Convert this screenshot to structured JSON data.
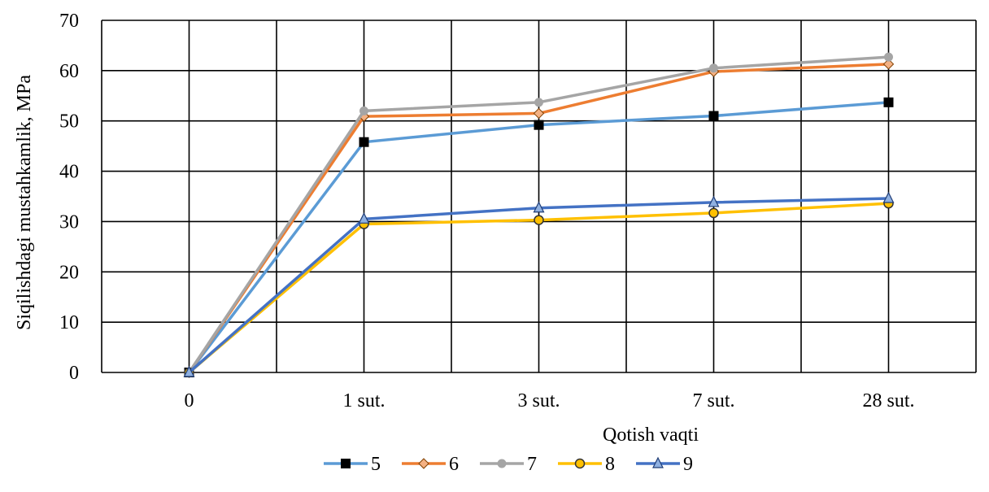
{
  "chart_data": {
    "type": "line",
    "title": "",
    "xlabel": "Qotish vaqti",
    "ylabel": "Siqilishdagi mustahkamlik, MPa",
    "categories": [
      "0",
      "1 sut.",
      "3 sut.",
      "7 sut.",
      "28 sut."
    ],
    "ylim": [
      0,
      70
    ],
    "yticks": [
      0,
      10,
      20,
      30,
      40,
      50,
      60,
      70
    ],
    "grid": true,
    "legend_position": "bottom",
    "series": [
      {
        "name": "5",
        "values": [
          0,
          45.8,
          49.2,
          51.0,
          53.7
        ],
        "color": "#5b9bd5",
        "marker": "square"
      },
      {
        "name": "6",
        "values": [
          0,
          50.9,
          51.5,
          59.8,
          61.3
        ],
        "color": "#ed7d31",
        "marker": "diamond"
      },
      {
        "name": "7",
        "values": [
          0,
          52.0,
          53.7,
          60.5,
          62.7
        ],
        "color": "#a5a5a5",
        "marker": "circle"
      },
      {
        "name": "8",
        "values": [
          0,
          29.5,
          30.3,
          31.7,
          33.6
        ],
        "color": "#ffc000",
        "marker": "circle-open"
      },
      {
        "name": "9",
        "values": [
          0,
          30.5,
          32.7,
          33.8,
          34.6
        ],
        "color": "#4472c4",
        "marker": "triangle"
      }
    ]
  }
}
